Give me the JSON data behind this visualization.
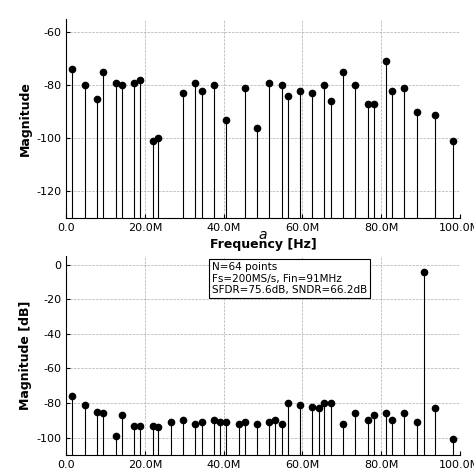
{
  "top_plot": {
    "ylabel": "Magnitude",
    "xlabel": "Frequency [Hz]",
    "xlim": [
      0,
      100000000
    ],
    "ylim": [
      -130,
      -55
    ],
    "yticks": [
      -120,
      -100,
      -80,
      -60
    ],
    "xticks": [
      0,
      20000000,
      40000000,
      60000000,
      80000000,
      100000000
    ],
    "xticklabels": [
      "0.0",
      "20.0M",
      "40.0M",
      "60.0M",
      "80.0M",
      "100.0M"
    ],
    "freqs": [
      1500000,
      4700000,
      7800000,
      9400000,
      12500000,
      14100000,
      17200000,
      18800000,
      21900000,
      23400000,
      29700000,
      32800000,
      34400000,
      37500000,
      40600000,
      45300000,
      48400000,
      51600000,
      54700000,
      56300000,
      59400000,
      62500000,
      65600000,
      67200000,
      70300000,
      73400000,
      76600000,
      78100000,
      81300000,
      82800000,
      85900000,
      89100000,
      93800000,
      98400000
    ],
    "magnitudes": [
      -74,
      -80,
      -85,
      -75,
      -79,
      -80,
      -79,
      -78,
      -101,
      -100,
      -83,
      -79,
      -82,
      -80,
      -93,
      -81,
      -96,
      -79,
      -80,
      -84,
      -82,
      -83,
      -80,
      -86,
      -75,
      -80,
      -87,
      -87,
      -71,
      -82,
      -81,
      -90,
      -91,
      -101
    ],
    "base": -130
  },
  "bottom_plot": {
    "ylabel": "Magnitude [dB]",
    "xlim": [
      0,
      100000000
    ],
    "ylim": [
      -110,
      5
    ],
    "yticks": [
      0,
      -20,
      -40,
      -60,
      -80,
      -100
    ],
    "xticks": [
      0,
      20000000,
      40000000,
      60000000,
      80000000,
      100000000
    ],
    "xticklabels": [
      "0.0",
      "20.0M",
      "40.0M",
      "60.0M",
      "80.0M",
      "100.0M"
    ],
    "annotation_line1": "N=64 points",
    "annotation_line2": "Fs=200MS/s, Fin=91MHz",
    "annotation_line3": "SFDR=75.6dB, SNDR=66.2dB",
    "freqs": [
      1500000,
      4700000,
      7800000,
      9400000,
      12500000,
      14100000,
      17200000,
      18800000,
      21900000,
      23400000,
      26600000,
      29700000,
      32800000,
      34400000,
      37500000,
      39100000,
      40600000,
      43800000,
      45300000,
      48400000,
      51600000,
      53100000,
      54700000,
      56300000,
      59400000,
      62500000,
      64100000,
      65600000,
      67200000,
      70300000,
      73400000,
      76600000,
      78100000,
      81300000,
      82800000,
      85900000,
      89100000,
      93800000,
      98400000,
      91000000
    ],
    "magnitudes": [
      -76,
      -81,
      -85,
      -86,
      -99,
      -87,
      -93,
      -93,
      -93,
      -94,
      -91,
      -90,
      -92,
      -91,
      -90,
      -91,
      -91,
      -92,
      -91,
      -92,
      -91,
      -90,
      -92,
      -80,
      -81,
      -82,
      -83,
      -80,
      -80,
      -92,
      -86,
      -90,
      -87,
      -86,
      -90,
      -86,
      -91,
      -83,
      -101,
      -4
    ],
    "base": -110
  },
  "label_a": "a",
  "fig_width": 4.74,
  "fig_height": 4.74,
  "dpi": 100,
  "grid_color": "#999999",
  "grid_style": "--",
  "marker_color": "black",
  "stem_color": "black"
}
